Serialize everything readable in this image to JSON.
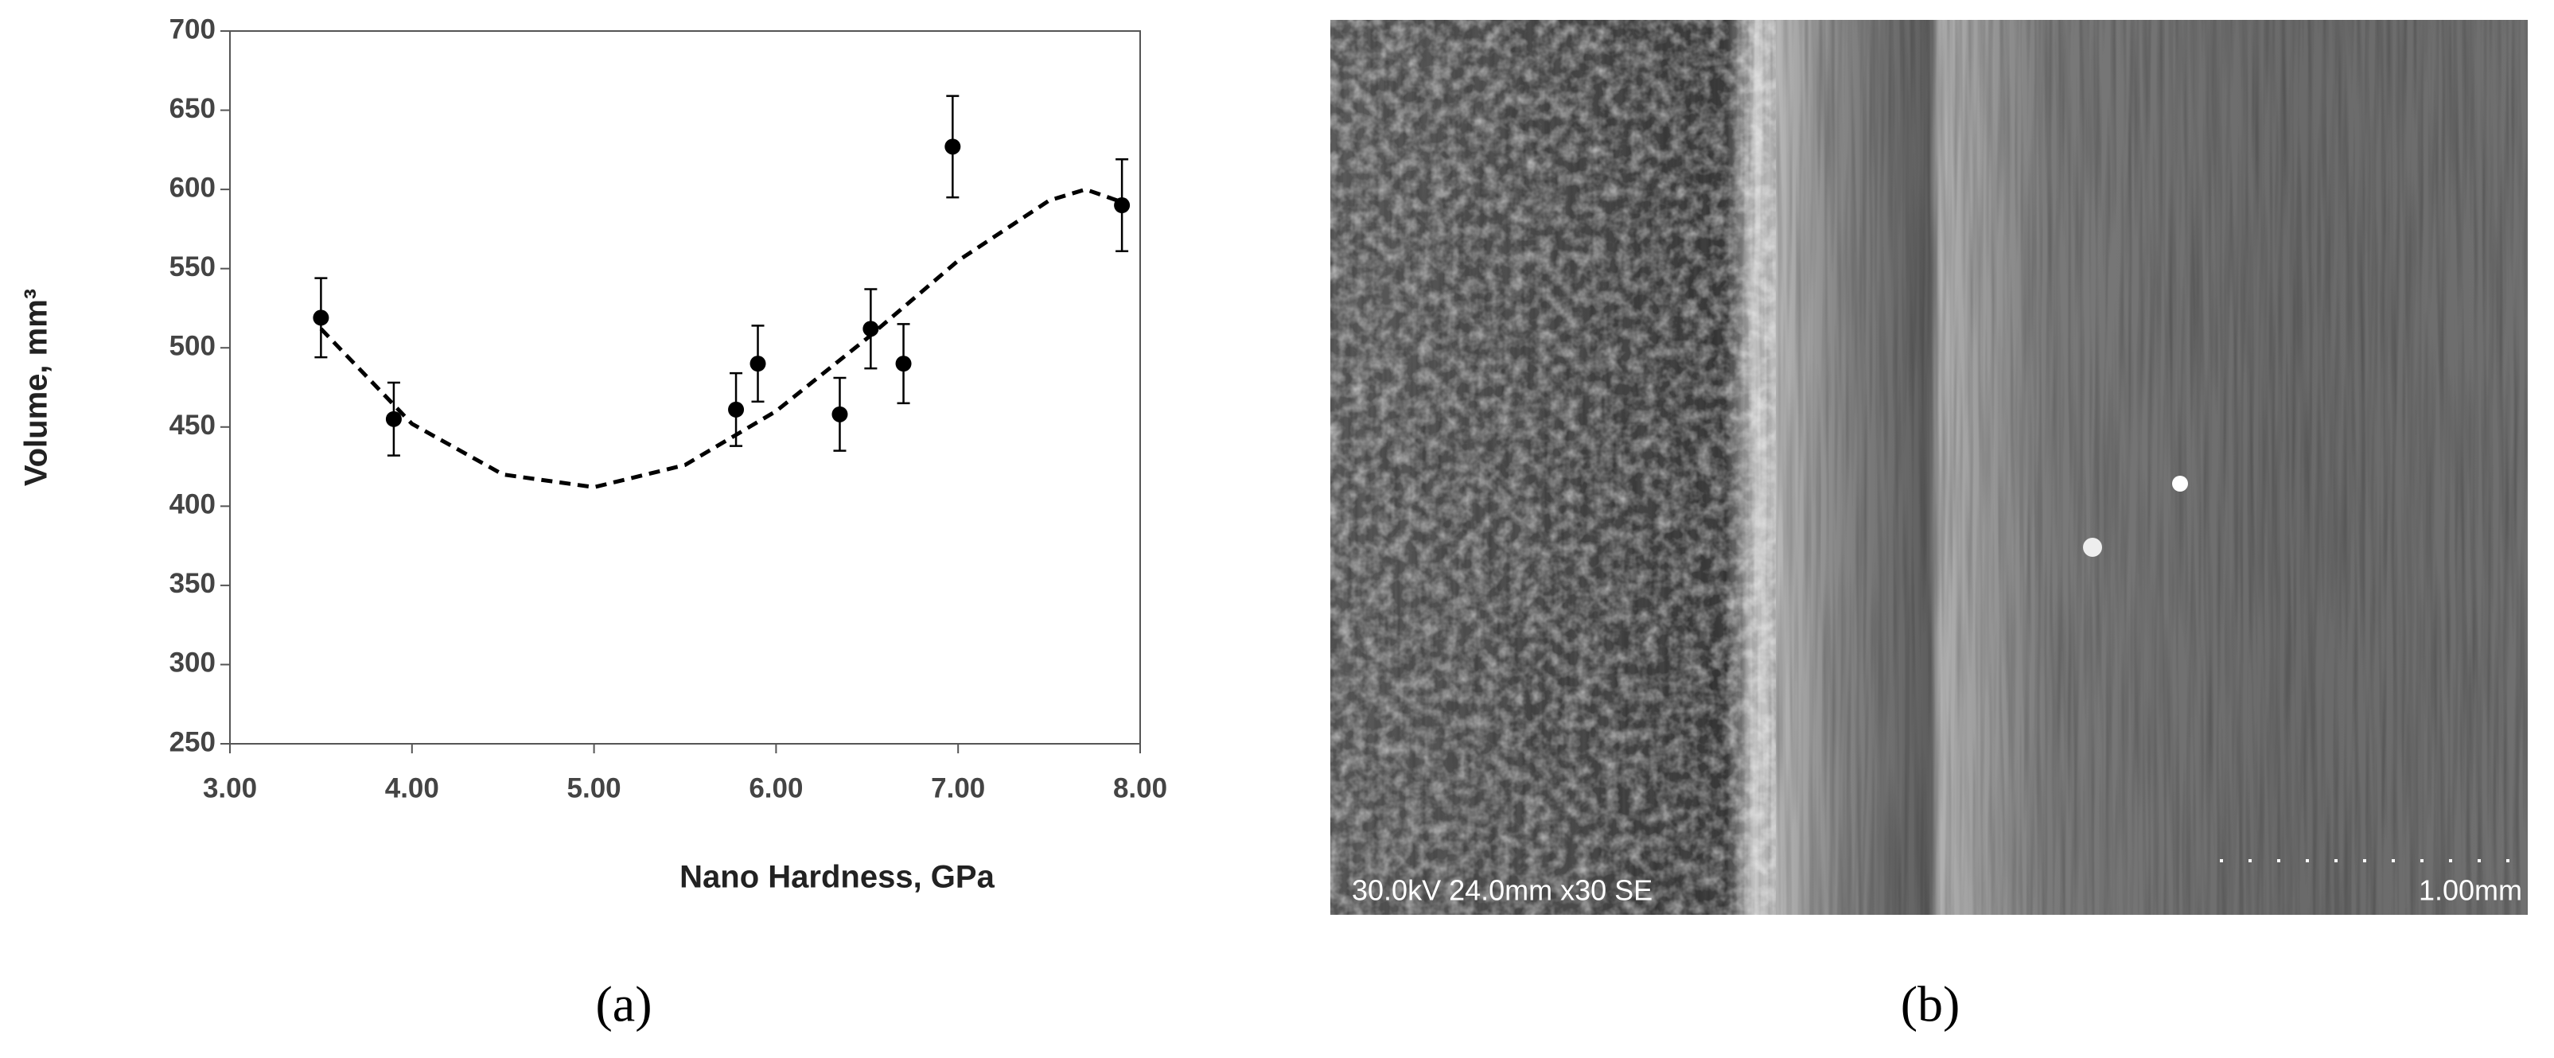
{
  "chart_data": {
    "type": "scatter",
    "xlabel": "Nano Hardness, GPa",
    "ylabel": "Volume, mm³",
    "x": [
      3.5,
      3.9,
      5.78,
      5.9,
      6.35,
      6.52,
      6.7,
      6.97,
      7.9
    ],
    "values": [
      519,
      455,
      461,
      490,
      458,
      512,
      490,
      627,
      590
    ],
    "errors": [
      25,
      23,
      23,
      24,
      23,
      25,
      25,
      32,
      29
    ],
    "color": "#000000",
    "trend": {
      "x": [
        3.5,
        4.0,
        4.5,
        5.0,
        5.5,
        6.0,
        6.5,
        7.0,
        7.5,
        7.7,
        7.9
      ],
      "values": [
        512,
        452,
        420,
        412,
        426,
        460,
        506,
        555,
        593,
        600,
        592
      ],
      "color": "#000000",
      "dashed": true
    },
    "xlim": [
      3,
      8
    ],
    "xticks": [
      {
        "value": 3,
        "label": "3.00"
      },
      {
        "value": 4,
        "label": "4.00"
      },
      {
        "value": 5,
        "label": "5.00"
      },
      {
        "value": 6,
        "label": "6.00"
      },
      {
        "value": 7,
        "label": "7.00"
      },
      {
        "value": 8,
        "label": "8.00"
      }
    ],
    "ylim": [
      250,
      700
    ],
    "yticks": [
      250,
      300,
      350,
      400,
      450,
      500,
      550,
      600,
      650,
      700
    ],
    "grid": false
  },
  "image": {
    "info": "30.0kV 24.0mm x30 SE",
    "scale": "1.00mm"
  },
  "captions": [
    "(a)",
    "(b)"
  ]
}
